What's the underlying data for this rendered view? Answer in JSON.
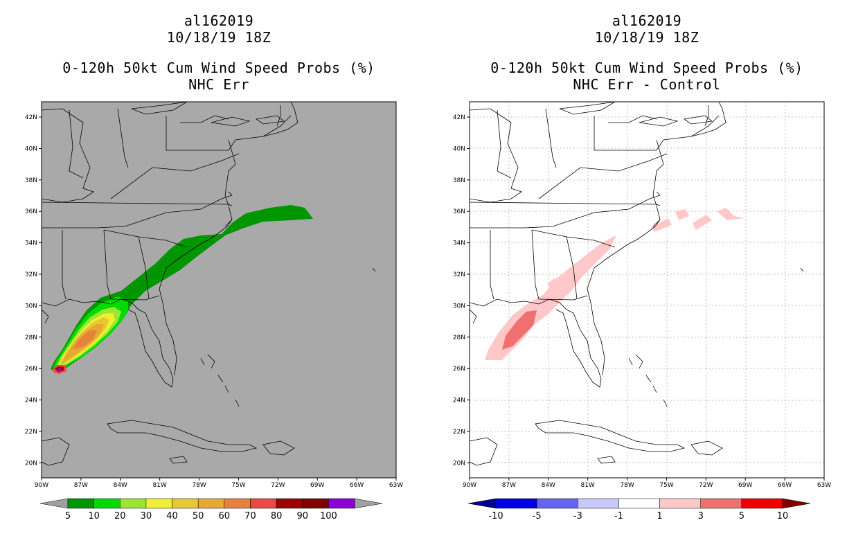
{
  "panels": [
    {
      "storm_id": "al162019",
      "datetime": "10/18/19 18Z",
      "product": "0-120h 50kt Cum Wind Speed Probs (%)",
      "subtitle": "NHC Err",
      "background": "#a9a9a9",
      "colorbar": {
        "labels": [
          "5",
          "10",
          "20",
          "30",
          "40",
          "50",
          "60",
          "70",
          "80",
          "90",
          "100"
        ],
        "colors": [
          "#009600",
          "#00dc00",
          "#9be632",
          "#f0f032",
          "#e6c832",
          "#e6aa32",
          "#e6823c",
          "#f04646",
          "#a00000",
          "#820000",
          "#8c00dc"
        ],
        "end_colors": [
          "#a0a0a0",
          "#a0a0a0"
        ]
      }
    },
    {
      "storm_id": "al162019",
      "datetime": "10/18/19 18Z",
      "product": "0-120h 50kt Cum Wind Speed Probs (%)",
      "subtitle": "NHC Err - Control",
      "background": "#ffffff",
      "colorbar": {
        "labels": [
          "-10",
          "-5",
          "-3",
          "-1",
          "1",
          "3",
          "5",
          "10"
        ],
        "colors": [
          "#0000e6",
          "#6464f0",
          "#c8c8fa",
          "#ffffff",
          "#ffc8c8",
          "#f07070",
          "#f00000"
        ],
        "end_colors": [
          "#00008c",
          "#820000"
        ]
      }
    }
  ],
  "axes": {
    "lon_ticks": [
      "90W",
      "87W",
      "84W",
      "81W",
      "78W",
      "75W",
      "72W",
      "69W",
      "66W",
      "63W"
    ],
    "lat_ticks": [
      "42N",
      "40N",
      "38N",
      "36N",
      "34N",
      "32N",
      "30N",
      "28N",
      "26N",
      "24N",
      "22N",
      "20N"
    ]
  },
  "map_data": {
    "lon_range": [
      -90,
      -63
    ],
    "lat_range": [
      19.2,
      43
    ],
    "prob_contours_pct": [
      5,
      10,
      20,
      30,
      40,
      50,
      60,
      70,
      80
    ],
    "diff_contours_pct": [
      1,
      3,
      5
    ]
  }
}
